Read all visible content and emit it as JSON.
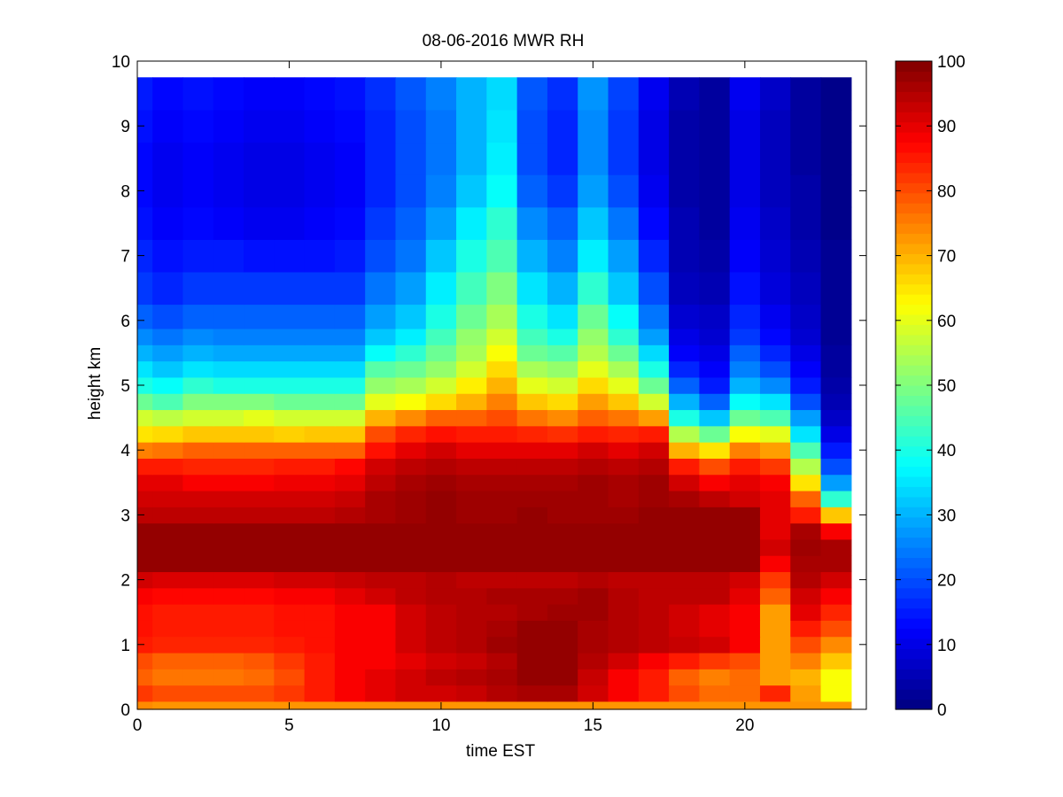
{
  "chart_data": {
    "type": "heatmap",
    "title": "08-06-2016 MWR RH",
    "xlabel": "time EST",
    "ylabel": "height km",
    "xlim": [
      0,
      24
    ],
    "ylim": [
      0,
      10
    ],
    "xticks": [
      0,
      5,
      10,
      15,
      20
    ],
    "yticks": [
      0,
      1,
      2,
      3,
      4,
      5,
      6,
      7,
      8,
      9,
      10
    ],
    "colorbar": {
      "range": [
        0,
        100
      ],
      "ticks": [
        0,
        10,
        20,
        30,
        40,
        50,
        60,
        70,
        80,
        90,
        100
      ],
      "colormap": "jet"
    },
    "grid": false,
    "time_hours": [
      0,
      1,
      2,
      3,
      4,
      5,
      6,
      7,
      8,
      9,
      10,
      11,
      12,
      13,
      14,
      15,
      16,
      17,
      18,
      19,
      20,
      21,
      22,
      23
    ],
    "height_km": [
      0.0,
      0.25,
      0.5,
      0.75,
      1.0,
      1.25,
      1.5,
      1.75,
      2.0,
      2.25,
      2.5,
      2.75,
      3.0,
      3.25,
      3.5,
      3.75,
      4.0,
      4.25,
      4.5,
      4.75,
      5.0,
      5.25,
      5.5,
      5.75,
      6.0,
      6.5,
      7.0,
      7.5,
      8.0,
      8.5,
      9.0,
      9.5
    ],
    "rh_percent": [
      [
        74,
        73,
        73,
        73,
        73,
        73,
        73,
        73,
        73,
        73,
        73,
        73,
        73,
        73,
        73,
        73,
        73,
        73,
        73,
        73,
        73,
        73,
        73,
        73
      ],
      [
        82,
        80,
        80,
        80,
        80,
        82,
        85,
        88,
        90,
        92,
        92,
        93,
        95,
        96,
        96,
        92,
        88,
        85,
        80,
        77,
        77,
        84,
        72,
        62
      ],
      [
        78,
        76,
        76,
        76,
        77,
        80,
        85,
        88,
        90,
        92,
        94,
        95,
        96,
        98,
        98,
        93,
        88,
        85,
        78,
        75,
        77,
        72,
        70,
        62
      ],
      [
        80,
        78,
        78,
        78,
        79,
        82,
        85,
        88,
        88,
        90,
        92,
        93,
        95,
        98,
        98,
        95,
        92,
        88,
        85,
        82,
        80,
        72,
        75,
        68
      ],
      [
        85,
        84,
        84,
        84,
        84,
        85,
        86,
        88,
        88,
        92,
        94,
        95,
        97,
        98,
        98,
        96,
        95,
        94,
        93,
        92,
        88,
        72,
        80,
        74
      ],
      [
        86,
        85,
        85,
        85,
        85,
        86,
        86,
        88,
        88,
        92,
        94,
        95,
        96,
        98,
        98,
        96,
        95,
        94,
        92,
        90,
        88,
        72,
        85,
        80
      ],
      [
        86,
        85,
        85,
        85,
        85,
        86,
        86,
        88,
        88,
        92,
        94,
        95,
        95,
        96,
        97,
        97,
        95,
        94,
        92,
        90,
        88,
        72,
        90,
        84
      ],
      [
        88,
        87,
        87,
        87,
        87,
        88,
        88,
        90,
        92,
        94,
        95,
        95,
        96,
        96,
        96,
        97,
        95,
        94,
        94,
        94,
        90,
        78,
        92,
        88
      ],
      [
        92,
        91,
        91,
        91,
        91,
        92,
        92,
        93,
        94,
        94,
        95,
        94,
        94,
        94,
        94,
        95,
        94,
        94,
        94,
        94,
        92,
        82,
        95,
        92
      ],
      [
        98,
        98,
        98,
        98,
        98,
        98,
        98,
        98,
        98,
        98,
        98,
        98,
        98,
        98,
        98,
        98,
        98,
        98,
        98,
        98,
        98,
        88,
        96,
        96
      ],
      [
        98,
        98,
        98,
        98,
        98,
        98,
        98,
        98,
        98,
        98,
        98,
        98,
        98,
        98,
        98,
        98,
        98,
        98,
        98,
        98,
        98,
        92,
        97,
        96
      ],
      [
        98,
        98,
        98,
        98,
        98,
        98,
        98,
        98,
        98,
        98,
        98,
        98,
        98,
        98,
        98,
        98,
        98,
        98,
        98,
        98,
        98,
        90,
        96,
        88
      ],
      [
        94,
        94,
        94,
        94,
        94,
        94,
        94,
        95,
        96,
        97,
        98,
        97,
        97,
        98,
        97,
        97,
        97,
        98,
        98,
        98,
        98,
        90,
        85,
        68
      ],
      [
        92,
        92,
        92,
        92,
        92,
        92,
        92,
        93,
        96,
        97,
        98,
        97,
        97,
        97,
        97,
        97,
        96,
        97,
        96,
        94,
        92,
        90,
        78,
        42
      ],
      [
        90,
        90,
        88,
        88,
        88,
        89,
        89,
        90,
        94,
        96,
        97,
        96,
        96,
        96,
        96,
        97,
        96,
        97,
        92,
        88,
        90,
        88,
        65,
        28
      ],
      [
        85,
        85,
        84,
        84,
        84,
        85,
        85,
        87,
        92,
        94,
        95,
        94,
        94,
        94,
        94,
        95,
        94,
        95,
        85,
        80,
        85,
        82,
        55,
        20
      ],
      [
        75,
        76,
        78,
        78,
        78,
        78,
        78,
        78,
        86,
        90,
        92,
        90,
        90,
        90,
        90,
        92,
        90,
        92,
        70,
        65,
        75,
        72,
        45,
        15
      ],
      [
        65,
        66,
        68,
        68,
        68,
        67,
        68,
        68,
        80,
        84,
        86,
        85,
        85,
        84,
        83,
        85,
        84,
        85,
        55,
        48,
        62,
        60,
        35,
        10
      ],
      [
        58,
        56,
        58,
        58,
        60,
        58,
        58,
        58,
        70,
        74,
        78,
        78,
        80,
        76,
        74,
        78,
        76,
        72,
        40,
        32,
        48,
        45,
        28,
        7
      ],
      [
        48,
        45,
        50,
        50,
        50,
        48,
        48,
        48,
        60,
        62,
        66,
        70,
        75,
        68,
        66,
        72,
        68,
        58,
        30,
        22,
        38,
        35,
        20,
        5
      ],
      [
        40,
        38,
        42,
        40,
        40,
        40,
        40,
        40,
        52,
        54,
        58,
        64,
        70,
        60,
        58,
        66,
        60,
        48,
        22,
        15,
        30,
        26,
        15,
        4
      ],
      [
        35,
        32,
        35,
        34,
        34,
        34,
        34,
        34,
        46,
        48,
        52,
        58,
        66,
        54,
        52,
        60,
        54,
        40,
        16,
        12,
        25,
        20,
        12,
        3
      ],
      [
        30,
        28,
        30,
        29,
        29,
        29,
        29,
        29,
        38,
        42,
        48,
        54,
        62,
        48,
        46,
        55,
        48,
        34,
        12,
        10,
        22,
        16,
        10,
        3
      ],
      [
        26,
        24,
        26,
        25,
        25,
        25,
        25,
        25,
        32,
        36,
        44,
        52,
        58,
        44,
        40,
        52,
        42,
        28,
        10,
        8,
        18,
        13,
        8,
        2
      ],
      [
        22,
        20,
        22,
        22,
        22,
        22,
        22,
        22,
        28,
        32,
        40,
        48,
        54,
        40,
        35,
        48,
        38,
        24,
        8,
        7,
        16,
        11,
        7,
        2
      ],
      [
        18,
        16,
        18,
        18,
        18,
        18,
        18,
        18,
        24,
        28,
        36,
        44,
        50,
        35,
        30,
        42,
        32,
        20,
        6,
        5,
        14,
        9,
        6,
        2
      ],
      [
        16,
        14,
        15,
        15,
        14,
        14,
        14,
        15,
        20,
        24,
        32,
        40,
        45,
        30,
        25,
        36,
        28,
        16,
        5,
        4,
        12,
        8,
        5,
        2
      ],
      [
        14,
        12,
        13,
        12,
        11,
        11,
        12,
        13,
        18,
        22,
        28,
        36,
        42,
        26,
        22,
        32,
        24,
        13,
        5,
        3,
        11,
        7,
        4,
        1
      ],
      [
        13,
        11,
        12,
        11,
        10,
        10,
        11,
        12,
        16,
        20,
        25,
        32,
        38,
        22,
        18,
        28,
        20,
        11,
        4,
        3,
        10,
        6,
        4,
        1
      ],
      [
        13,
        11,
        12,
        11,
        10,
        10,
        11,
        12,
        16,
        20,
        24,
        30,
        36,
        20,
        16,
        26,
        18,
        10,
        4,
        3,
        10,
        6,
        3,
        1
      ],
      [
        14,
        12,
        13,
        12,
        11,
        11,
        12,
        13,
        16,
        20,
        24,
        30,
        35,
        20,
        16,
        26,
        18,
        10,
        4,
        3,
        10,
        6,
        3,
        1
      ],
      [
        15,
        13,
        14,
        13,
        12,
        12,
        13,
        14,
        17,
        21,
        25,
        30,
        34,
        21,
        17,
        27,
        19,
        11,
        5,
        3,
        11,
        7,
        3,
        1
      ]
    ]
  }
}
